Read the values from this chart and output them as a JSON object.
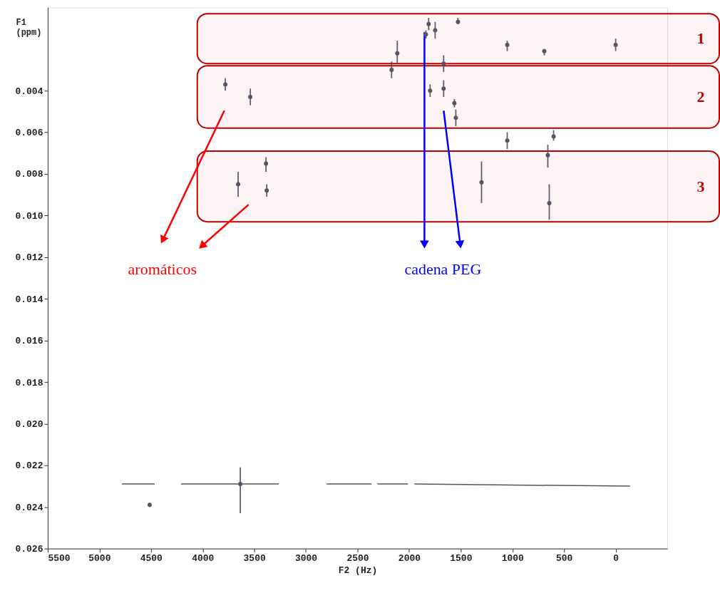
{
  "chart_data": {
    "type": "scatter",
    "xlabel": "F2 (Hz)",
    "ylabel": "F1 (ppm)",
    "xlim": [
      5500,
      -500
    ],
    "xticks": [
      5500,
      5000,
      4500,
      4000,
      3500,
      3000,
      2500,
      2000,
      1500,
      1000,
      500,
      0
    ],
    "ylim": [
      0.026,
      0
    ],
    "yticks": [
      0.004,
      0.006,
      0.008,
      {
        "value": 0.01,
        "label": "0.010"
      },
      0.012,
      0.014,
      0.016,
      0.018,
      {
        "value": 0.02,
        "label": "0.020"
      },
      0.022,
      0.024,
      0.026
    ],
    "grid": false,
    "series": [
      {
        "color": "#555566",
        "marker": "circle",
        "x": [
          1811,
          1748,
          1838,
          1527,
          2115,
          2170,
          1666,
          1666,
          1797,
          1562,
          1548,
          3780,
          3538,
          3386,
          3379,
          3656,
          1050,
          691,
          0,
          1050,
          601,
          657,
          1299,
          643,
          3635,
          4513
        ],
        "values": [
          0.0008,
          0.0011,
          0.0013,
          0.0007,
          0.0022,
          0.003,
          0.0027,
          0.0039,
          0.004,
          0.0046,
          0.0053,
          0.0037,
          0.0043,
          0.0075,
          0.0088,
          0.0085,
          0.0018,
          0.0021,
          0.0018,
          0.0064,
          0.0062,
          0.0071,
          0.0084,
          0.0094,
          0.0229,
          0.0239
        ],
        "errors": [
          [
            0.0005,
            0.0011
          ],
          [
            0.0007,
            0.0015
          ],
          [
            0.0011,
            0.0015
          ],
          [
            0.0005,
            0.0008
          ],
          [
            0.0016,
            0.0027
          ],
          [
            0.0026,
            0.0034
          ],
          [
            0.0023,
            0.0031
          ],
          [
            0.0035,
            0.0043
          ],
          [
            0.0037,
            0.0043
          ],
          [
            0.0044,
            0.0048
          ],
          [
            0.0049,
            0.0057
          ],
          [
            0.0034,
            0.004
          ],
          [
            0.0039,
            0.0047
          ],
          [
            0.0072,
            0.0079
          ],
          [
            0.0085,
            0.0091
          ],
          [
            0.0079,
            0.0091
          ],
          [
            0.0016,
            0.0021
          ],
          [
            0.002,
            0.0023
          ],
          [
            0.0015,
            0.0021
          ],
          [
            0.006,
            0.0068
          ],
          [
            0.0059,
            0.0064
          ],
          [
            0.0066,
            0.0077
          ],
          [
            0.0074,
            0.0094
          ],
          [
            0.0085,
            0.0102
          ],
          [
            0.0221,
            0.0243
          ],
          [
            0.0238,
            0.024
          ]
        ]
      },
      {
        "type": "line",
        "color": "#555555",
        "x": [
          4782,
          4464
        ],
        "values": [
          0.0229,
          0.0229
        ]
      },
      {
        "type": "line",
        "color": "#555555",
        "x": [
          4209,
          3262
        ],
        "values": [
          0.0229,
          0.0229
        ]
      },
      {
        "type": "line",
        "color": "#555555",
        "x": [
          2799,
          2364
        ],
        "values": [
          0.0229,
          0.0229
        ]
      },
      {
        "type": "line",
        "color": "#555555",
        "x": [
          2308,
          2011
        ],
        "values": [
          0.0229,
          0.0229
        ]
      },
      {
        "type": "line",
        "color": "#555555",
        "x": [
          1949,
          -138
        ],
        "values": [
          0.0229,
          0.023
        ]
      }
    ],
    "bands": [
      {
        "axis": "y",
        "from": 0.0003,
        "to": 0.0027,
        "label": "1",
        "color": "#c00000"
      },
      {
        "axis": "y",
        "from": 0.0028,
        "to": 0.0058,
        "label": "2",
        "color": "#c00000"
      },
      {
        "axis": "y",
        "from": 0.0069,
        "to": 0.0103,
        "label": "3",
        "color": "#c00000"
      }
    ],
    "annotations": [
      "aromáticos",
      "cadena PEG"
    ]
  }
}
